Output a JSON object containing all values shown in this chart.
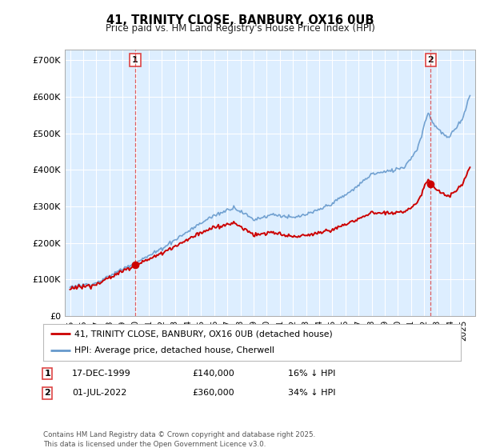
{
  "title": "41, TRINITY CLOSE, BANBURY, OX16 0UB",
  "subtitle": "Price paid vs. HM Land Registry's House Price Index (HPI)",
  "bg_color": "#ffffff",
  "plot_bg_color": "#ddeeff",
  "grid_color": "#ffffff",
  "sale1": {
    "date_num": 1999.96,
    "price": 140000,
    "label": "1",
    "date_str": "17-DEC-1999",
    "pct": "16% ↓ HPI"
  },
  "sale2": {
    "date_num": 2022.5,
    "price": 360000,
    "label": "2",
    "date_str": "01-JUL-2022",
    "pct": "34% ↓ HPI"
  },
  "legend_line1": "41, TRINITY CLOSE, BANBURY, OX16 0UB (detached house)",
  "legend_line2": "HPI: Average price, detached house, Cherwell",
  "footnote": "Contains HM Land Registry data © Crown copyright and database right 2025.\nThis data is licensed under the Open Government Licence v3.0.",
  "price_line_color": "#cc0000",
  "hpi_line_color": "#6699cc",
  "dashed_line_color": "#dd4444",
  "ylim": [
    0,
    730000
  ],
  "ytick_values": [
    0,
    100000,
    200000,
    300000,
    400000,
    500000,
    600000,
    700000
  ],
  "ytick_labels": [
    "£0",
    "£100K",
    "£200K",
    "£300K",
    "£400K",
    "£500K",
    "£600K",
    "£700K"
  ],
  "xmin": 1994.6,
  "xmax": 2025.9,
  "xticks": [
    1995,
    1996,
    1997,
    1998,
    1999,
    2000,
    2001,
    2002,
    2003,
    2004,
    2005,
    2006,
    2007,
    2008,
    2009,
    2010,
    2011,
    2012,
    2013,
    2014,
    2015,
    2016,
    2017,
    2018,
    2019,
    2020,
    2021,
    2022,
    2023,
    2024,
    2025
  ]
}
